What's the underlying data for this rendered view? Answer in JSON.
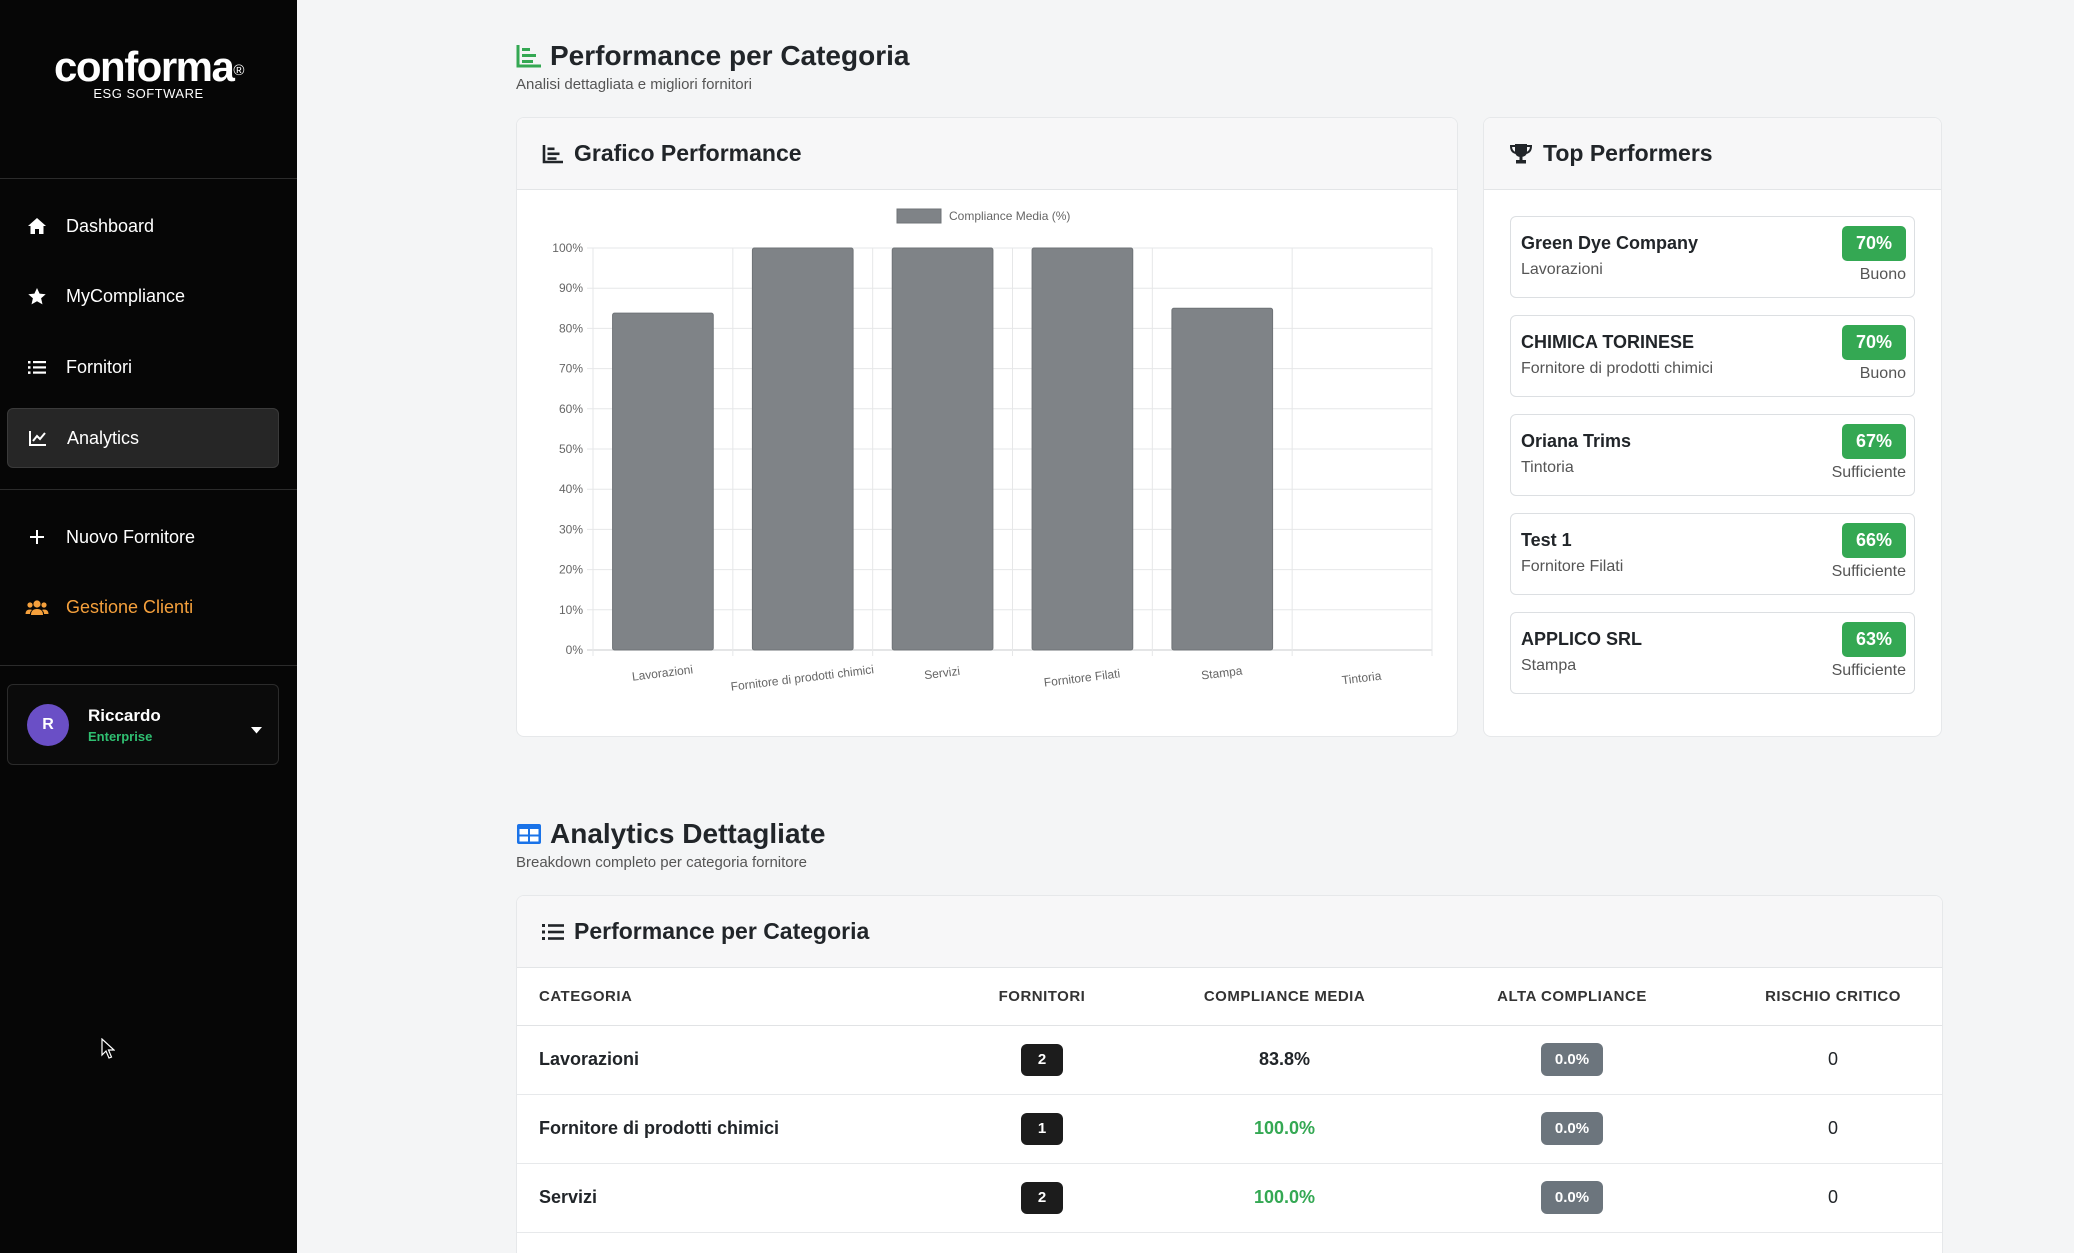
{
  "sidebar": {
    "logo": "conforma",
    "logo_mark": "®",
    "logo_sub": "ESG SOFTWARE",
    "items": [
      {
        "label": "Dashboard",
        "icon": "home-icon"
      },
      {
        "label": "MyCompliance",
        "icon": "star-icon"
      },
      {
        "label": "Fornitori",
        "icon": "list-icon"
      },
      {
        "label": "Analytics",
        "icon": "chart-line-icon",
        "active": true
      },
      {
        "label": "Nuovo Fornitore",
        "icon": "plus-icon"
      },
      {
        "label": "Gestione Clienti",
        "icon": "users-icon",
        "color": "#f5a03c"
      }
    ],
    "user": {
      "initial": "R",
      "name": "Riccardo",
      "plan": "Enterprise"
    }
  },
  "section1": {
    "title": "Performance per Categoria",
    "subtitle": "Analisi dettagliata e migliori fornitori"
  },
  "chart_card": {
    "title": "Grafico Performance"
  },
  "chart_data": {
    "type": "bar",
    "categories": [
      "Lavorazioni",
      "Fornitore di prodotti chimici",
      "Servizi",
      "Fornitore Filati",
      "Stampa",
      "Tintoria"
    ],
    "series": [
      {
        "name": "Compliance Media (%)",
        "values": [
          83.8,
          100,
          100,
          100,
          85,
          0
        ],
        "color": "#7f8387"
      }
    ],
    "yticks": [
      "0%",
      "10%",
      "20%",
      "30%",
      "40%",
      "50%",
      "60%",
      "70%",
      "80%",
      "90%",
      "100%"
    ],
    "ylim": [
      0,
      100
    ],
    "grid": true,
    "legend": "top"
  },
  "top_card": {
    "title": "Top Performers",
    "items": [
      {
        "name": "Green Dye Company",
        "category": "Lavorazioni",
        "score": "70%",
        "level": "Buono"
      },
      {
        "name": "CHIMICA TORINESE",
        "category": "Fornitore di prodotti chimici",
        "score": "70%",
        "level": "Buono"
      },
      {
        "name": "Oriana Trims",
        "category": "Tintoria",
        "score": "67%",
        "level": "Sufficiente"
      },
      {
        "name": "Test 1",
        "category": "Fornitore Filati",
        "score": "66%",
        "level": "Sufficiente"
      },
      {
        "name": "APPLICO SRL",
        "category": "Stampa",
        "score": "63%",
        "level": "Sufficiente"
      }
    ]
  },
  "section2": {
    "title": "Analytics Dettagliate",
    "subtitle": "Breakdown completo per categoria fornitore"
  },
  "table_card": {
    "title": "Performance per Categoria",
    "headers": [
      "CATEGORIA",
      "FORNITORI",
      "COMPLIANCE MEDIA",
      "ALTA COMPLIANCE",
      "RISCHIO CRITICO"
    ],
    "rows": [
      {
        "categoria": "Lavorazioni",
        "fornitori": "2",
        "compliance": "83.8%",
        "alta": "0.0%",
        "rischio": "0",
        "green": false
      },
      {
        "categoria": "Fornitore di prodotti chimici",
        "fornitori": "1",
        "compliance": "100.0%",
        "alta": "0.0%",
        "rischio": "0",
        "green": true
      },
      {
        "categoria": "Servizi",
        "fornitori": "2",
        "compliance": "100.0%",
        "alta": "0.0%",
        "rischio": "0",
        "green": true
      }
    ]
  },
  "colors": {
    "accent_green": "#34a853",
    "sidebar_bg": "#060606",
    "orange": "#f5a03c",
    "table_icon_blue": "#1a73e8"
  }
}
